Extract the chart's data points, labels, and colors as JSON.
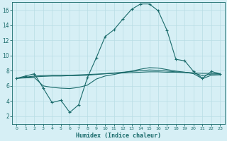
{
  "xlabel": "Humidex (Indice chaleur)",
  "background_color": "#d6eff5",
  "grid_color": "#b8dde4",
  "line_color": "#1a6b6b",
  "xlim": [
    -0.5,
    23.5
  ],
  "ylim": [
    1,
    17
  ],
  "xticks": [
    0,
    1,
    2,
    3,
    4,
    5,
    6,
    7,
    8,
    9,
    10,
    11,
    12,
    13,
    14,
    15,
    16,
    17,
    18,
    19,
    20,
    21,
    22,
    23
  ],
  "yticks": [
    2,
    4,
    6,
    8,
    10,
    12,
    14,
    16
  ],
  "line1_x": [
    0,
    1,
    2,
    3,
    4,
    5,
    6,
    7,
    8,
    9,
    10,
    11,
    12,
    13,
    14,
    15,
    16,
    17,
    18,
    19,
    20,
    21,
    22,
    23
  ],
  "line1_y": [
    7.0,
    7.3,
    7.6,
    5.7,
    3.8,
    4.1,
    2.5,
    3.5,
    7.1,
    9.7,
    12.5,
    13.4,
    14.8,
    16.1,
    16.8,
    16.8,
    15.9,
    13.3,
    9.5,
    9.3,
    7.9,
    7.0,
    7.9,
    7.6
  ],
  "line2_x": [
    0,
    1,
    2,
    3,
    4,
    5,
    6,
    7,
    8,
    9,
    10,
    11,
    12,
    13,
    14,
    15,
    16,
    17,
    18,
    19,
    20,
    21,
    22,
    23
  ],
  "line2_y": [
    7.0,
    7.15,
    7.3,
    7.35,
    7.4,
    7.4,
    7.4,
    7.45,
    7.5,
    7.55,
    7.6,
    7.65,
    7.7,
    7.75,
    7.8,
    7.85,
    7.85,
    7.8,
    7.8,
    7.75,
    7.7,
    7.65,
    7.65,
    7.6
  ],
  "line3_x": [
    0,
    1,
    2,
    3,
    4,
    5,
    6,
    7,
    8,
    9,
    10,
    11,
    12,
    13,
    14,
    15,
    16,
    17,
    18,
    19,
    20,
    21,
    22,
    23
  ],
  "line3_y": [
    7.0,
    7.1,
    7.2,
    7.25,
    7.3,
    7.3,
    7.35,
    7.35,
    7.4,
    7.5,
    7.6,
    7.7,
    7.8,
    7.9,
    8.0,
    8.1,
    8.05,
    7.95,
    7.85,
    7.8,
    7.7,
    7.35,
    7.55,
    7.55
  ],
  "line4_x": [
    0,
    1,
    2,
    3,
    4,
    5,
    6,
    7,
    8,
    9,
    10,
    11,
    12,
    13,
    14,
    15,
    16,
    17,
    18,
    19,
    20,
    21,
    22,
    23
  ],
  "line4_y": [
    7.0,
    7.05,
    7.1,
    6.0,
    5.8,
    5.7,
    5.65,
    5.8,
    6.1,
    6.9,
    7.3,
    7.5,
    7.75,
    7.95,
    8.2,
    8.4,
    8.35,
    8.15,
    7.95,
    7.8,
    7.6,
    6.95,
    7.4,
    7.45
  ]
}
